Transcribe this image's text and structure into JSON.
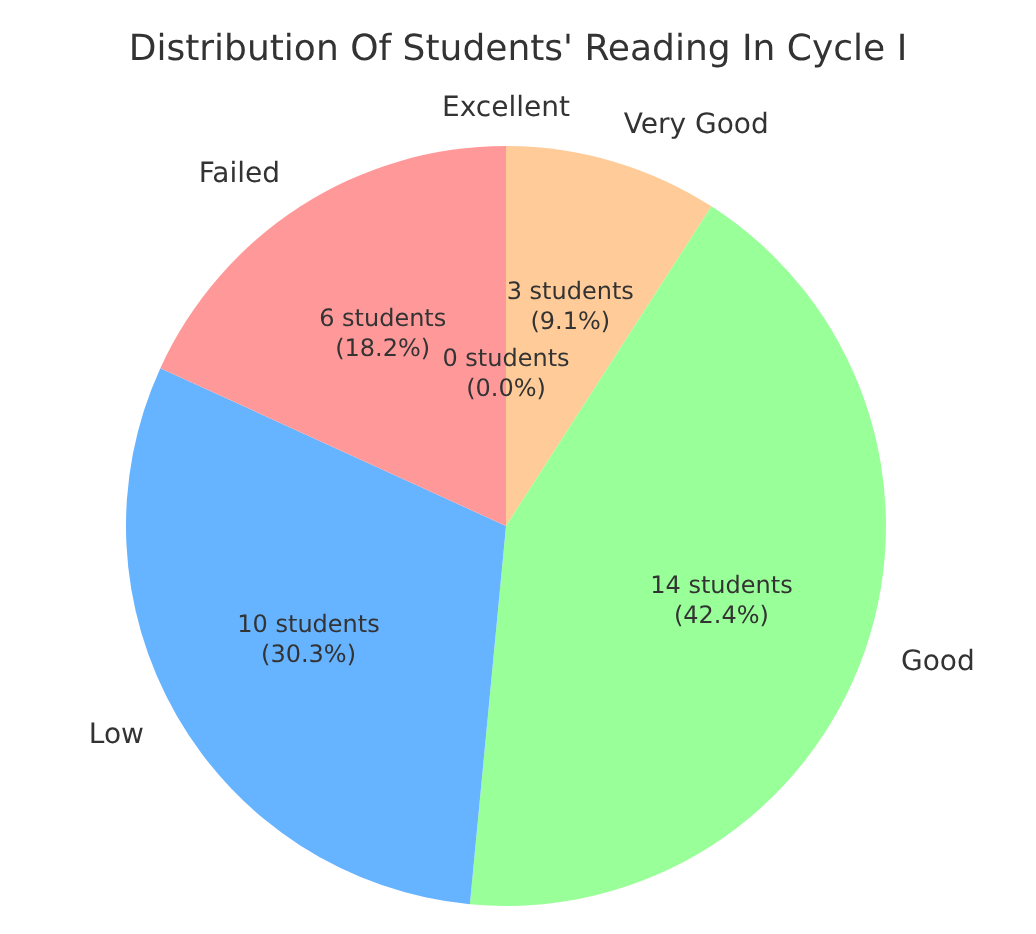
{
  "chart_data": {
    "type": "pie",
    "title": "Distribution Of Students' Reading In Cycle I",
    "categories": [
      "Excellent",
      "Very Good",
      "Good",
      "Low",
      "Failed"
    ],
    "values": [
      0,
      3,
      14,
      10,
      6
    ],
    "colors": [
      "#c2c2f0",
      "#ffcc99",
      "#99ff99",
      "#66b3ff",
      "#ff9999"
    ],
    "value_labels": [
      "0 students\n(0.0%)",
      "3 students\n(9.1%)",
      "14 students\n(42.4%)",
      "10 students\n(30.3%)",
      "6 students\n(18.2%)"
    ],
    "legend": false
  }
}
